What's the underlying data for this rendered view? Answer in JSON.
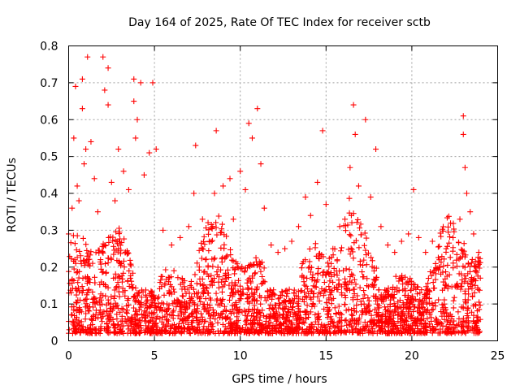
{
  "chart_data": {
    "type": "scatter",
    "title": "Day 164 of 2025, Rate Of TEC Index for receiver sctb",
    "xlabel": "GPS time / hours",
    "ylabel": "ROTI / TECUs",
    "xlim": [
      0,
      25
    ],
    "ylim": [
      0,
      0.8
    ],
    "xticks": [
      0,
      5,
      10,
      15,
      20,
      25
    ],
    "xtick_labels": [
      "0",
      "5",
      "10",
      "15",
      "20",
      "25"
    ],
    "yticks": [
      0,
      0.1,
      0.2,
      0.3,
      0.4,
      0.5,
      0.6,
      0.7,
      0.8
    ],
    "ytick_labels": [
      "0",
      "0.1",
      "0.2",
      "0.3",
      "0.4",
      "0.5",
      "0.6",
      "0.7",
      "0.8"
    ],
    "grid": true,
    "marker": "+",
    "color": "#ff0000",
    "series": [
      {
        "name": "ROTI",
        "points": [
          [
            0.0,
            0.29
          ],
          [
            0.2,
            0.36
          ],
          [
            0.3,
            0.55
          ],
          [
            0.4,
            0.69
          ],
          [
            0.5,
            0.42
          ],
          [
            0.6,
            0.38
          ],
          [
            0.8,
            0.71
          ],
          [
            0.8,
            0.63
          ],
          [
            0.9,
            0.48
          ],
          [
            1.0,
            0.52
          ],
          [
            1.1,
            0.77
          ],
          [
            1.3,
            0.54
          ],
          [
            1.5,
            0.44
          ],
          [
            1.7,
            0.35
          ],
          [
            2.0,
            0.77
          ],
          [
            2.1,
            0.68
          ],
          [
            2.3,
            0.74
          ],
          [
            2.3,
            0.64
          ],
          [
            2.5,
            0.43
          ],
          [
            2.7,
            0.38
          ],
          [
            2.9,
            0.52
          ],
          [
            3.2,
            0.46
          ],
          [
            3.5,
            0.41
          ],
          [
            3.8,
            0.71
          ],
          [
            3.8,
            0.65
          ],
          [
            3.9,
            0.55
          ],
          [
            4.0,
            0.6
          ],
          [
            4.2,
            0.7
          ],
          [
            4.4,
            0.45
          ],
          [
            4.7,
            0.51
          ],
          [
            4.9,
            0.7
          ],
          [
            5.1,
            0.52
          ],
          [
            5.5,
            0.3
          ],
          [
            6.0,
            0.26
          ],
          [
            6.5,
            0.28
          ],
          [
            7.0,
            0.31
          ],
          [
            7.3,
            0.4
          ],
          [
            7.4,
            0.53
          ],
          [
            7.8,
            0.33
          ],
          [
            8.2,
            0.27
          ],
          [
            8.5,
            0.4
          ],
          [
            8.6,
            0.57
          ],
          [
            9.0,
            0.42
          ],
          [
            9.4,
            0.44
          ],
          [
            9.6,
            0.33
          ],
          [
            10.0,
            0.46
          ],
          [
            10.3,
            0.41
          ],
          [
            10.5,
            0.59
          ],
          [
            10.7,
            0.55
          ],
          [
            11.0,
            0.63
          ],
          [
            11.2,
            0.48
          ],
          [
            11.4,
            0.36
          ],
          [
            11.8,
            0.26
          ],
          [
            12.2,
            0.24
          ],
          [
            12.6,
            0.25
          ],
          [
            13.0,
            0.27
          ],
          [
            13.4,
            0.31
          ],
          [
            13.8,
            0.39
          ],
          [
            14.1,
            0.34
          ],
          [
            14.5,
            0.43
          ],
          [
            14.8,
            0.57
          ],
          [
            15.0,
            0.37
          ],
          [
            15.4,
            0.25
          ],
          [
            15.8,
            0.31
          ],
          [
            16.1,
            0.33
          ],
          [
            16.4,
            0.47
          ],
          [
            16.6,
            0.64
          ],
          [
            16.7,
            0.56
          ],
          [
            16.9,
            0.42
          ],
          [
            17.3,
            0.6
          ],
          [
            17.6,
            0.39
          ],
          [
            17.9,
            0.52
          ],
          [
            18.2,
            0.31
          ],
          [
            18.6,
            0.26
          ],
          [
            19.0,
            0.24
          ],
          [
            19.4,
            0.27
          ],
          [
            19.8,
            0.29
          ],
          [
            20.1,
            0.41
          ],
          [
            20.4,
            0.28
          ],
          [
            20.8,
            0.24
          ],
          [
            21.2,
            0.27
          ],
          [
            21.6,
            0.22
          ],
          [
            22.0,
            0.25
          ],
          [
            22.4,
            0.28
          ],
          [
            22.8,
            0.33
          ],
          [
            23.0,
            0.61
          ],
          [
            23.0,
            0.56
          ],
          [
            23.1,
            0.47
          ],
          [
            23.2,
            0.4
          ],
          [
            23.4,
            0.35
          ],
          [
            23.6,
            0.29
          ],
          [
            23.9,
            0.24
          ]
        ]
      }
    ],
    "band_note": "Dense cloud of points between roughly 0.02 and 0.35 TECUs across 0-24 hours"
  }
}
